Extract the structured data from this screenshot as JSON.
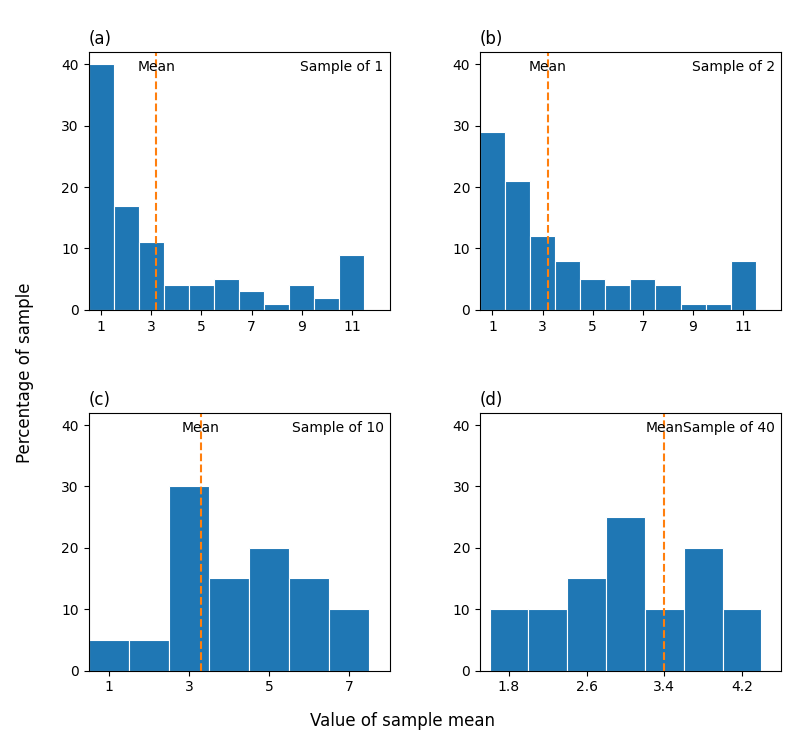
{
  "chart_data": [
    {
      "type": "histogram",
      "title": "(a)",
      "annotation": "Sample of 1",
      "mean_line": {
        "x": 3.2,
        "label": "Mean"
      },
      "bins": [
        0.5,
        1.5,
        2.5,
        3.5,
        4.5,
        5.5,
        6.5,
        7.5,
        8.5,
        9.5,
        10.5,
        11.5
      ],
      "values": [
        40,
        17,
        11,
        4,
        4,
        5,
        3,
        1,
        4,
        2,
        9
      ],
      "xlim": [
        0.5,
        12.5
      ],
      "xticks": [
        1,
        3,
        5,
        7,
        9,
        11
      ],
      "ylim": [
        0,
        42
      ],
      "yticks": [
        0,
        10,
        20,
        30,
        40
      ]
    },
    {
      "type": "histogram",
      "title": "(b)",
      "annotation": "Sample of 2",
      "mean_line": {
        "x": 3.2,
        "label": "Mean"
      },
      "bins": [
        0.5,
        1.5,
        2.5,
        3.5,
        4.5,
        5.5,
        6.5,
        7.5,
        8.5,
        9.5,
        10.5,
        11.5
      ],
      "values": [
        29,
        21,
        12,
        8,
        5,
        4,
        5,
        4,
        1,
        1,
        8
      ],
      "xlim": [
        0.5,
        12.5
      ],
      "xticks": [
        1,
        3,
        5,
        7,
        9,
        11
      ],
      "ylim": [
        0,
        42
      ],
      "yticks": [
        0,
        10,
        20,
        30,
        40
      ]
    },
    {
      "type": "histogram",
      "title": "(c)",
      "annotation": "Sample of 10",
      "mean_line": {
        "x": 3.3,
        "label": "Mean"
      },
      "bins": [
        0.5,
        1.5,
        2.5,
        3.5,
        4.5,
        5.5,
        6.5,
        7.5
      ],
      "values": [
        5,
        5,
        30,
        15,
        20,
        15,
        10
      ],
      "xlim": [
        0.5,
        8.0
      ],
      "xticks": [
        1,
        3,
        5,
        7
      ],
      "ylim": [
        0,
        42
      ],
      "yticks": [
        0,
        10,
        20,
        30,
        40
      ]
    },
    {
      "type": "histogram",
      "title": "(d)",
      "annotation": "Sample of 40",
      "mean_line": {
        "x": 3.4,
        "label": "Mean"
      },
      "bins": [
        1.6,
        2.0,
        2.4,
        2.8,
        3.2,
        3.6,
        4.0,
        4.4
      ],
      "values": [
        10,
        10,
        15,
        25,
        10,
        20,
        10
      ],
      "xlim": [
        1.5,
        4.6
      ],
      "xticks": [
        1.8,
        2.6,
        3.4,
        4.2
      ],
      "ylim": [
        0,
        42
      ],
      "yticks": [
        0,
        10,
        20,
        30,
        40
      ]
    }
  ],
  "xlabel": "Value of sample mean",
  "ylabel": "Percentage of sample"
}
